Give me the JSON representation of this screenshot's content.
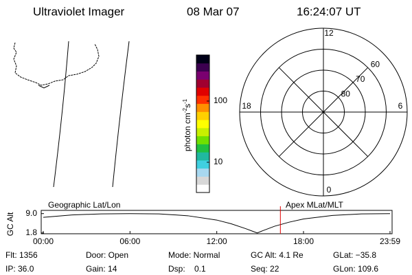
{
  "header": {
    "title": "Ultraviolet Imager",
    "date": "08 Mar 07",
    "time": "16:24:07 UT"
  },
  "colorbar": {
    "label": [
      "photon cm",
      "-2",
      "s",
      "-1"
    ],
    "log": true,
    "lim": [
      3.2,
      566
    ],
    "ticks": [
      10,
      100
    ],
    "colors": [
      "#ffffff",
      "#d8d8d8",
      "#a8d8f0",
      "#40d0e0",
      "#20b8a0",
      "#20c040",
      "#70e000",
      "#c8f000",
      "#ffff00",
      "#ffd000",
      "#ff9000",
      "#ff3000",
      "#e00000",
      "#a00030",
      "#7a0070",
      "#3c0050",
      "#000018"
    ]
  },
  "polar": {
    "lat_lim": [
      50,
      90
    ],
    "lat_rings": [
      60,
      70,
      80
    ],
    "mlt_ticks": [
      0,
      6,
      12,
      18
    ]
  },
  "timeline": {
    "left_label": "Geographic Lat/Lon",
    "right_label": "Apex MLat/MLT",
    "y_label": "GC Alt",
    "ylim": [
      1.5,
      10.2
    ],
    "yticks": [
      1.8,
      {
        "value": 9,
        "label": "9.0"
      }
    ],
    "xlim": [
      0,
      1439
    ],
    "xticks": [
      {
        "value": 0,
        "label": "00:00"
      },
      {
        "value": 360,
        "label": "06:00"
      },
      {
        "value": 720,
        "label": "12:00"
      },
      {
        "value": 1080,
        "label": "18:00"
      },
      {
        "value": 1439,
        "label": "23:59"
      }
    ],
    "minutes": [
      0,
      120,
      240,
      360,
      480,
      600,
      720,
      780,
      840,
      870,
      888,
      910,
      960,
      1020,
      1080,
      1200,
      1320,
      1439
    ],
    "altitude": [
      7.6,
      8.5,
      8.9,
      9.0,
      8.9,
      8.2,
      6.6,
      5.2,
      3.4,
      2.4,
      1.8,
      2.6,
      4.3,
      5.8,
      7.0,
      8.3,
      8.9,
      9.0
    ],
    "current_minute": 984
  },
  "info": {
    "rows": [
      [
        "Flt: 1356",
        "Door: Open",
        "Mode: Normal",
        "GC Alt: 4.1 Re",
        "GLat: −35.8"
      ],
      [
        "IP: 36.0",
        "Gain: 14",
        "Dsp:    0.1",
        "Seq: 22",
        "GLon: 109.6"
      ]
    ]
  }
}
